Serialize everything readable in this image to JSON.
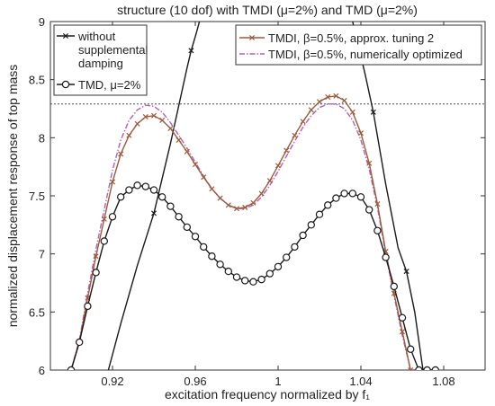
{
  "chart_data": {
    "type": "line",
    "title": "structure (10 dof) with TMDI (μ=2%) and TMD (μ=2%)",
    "xlabel": "excitation frequency normalized by f₁",
    "ylabel": "normalized displacement response of top mass",
    "xlim": [
      0.89,
      1.1
    ],
    "ylim": [
      6,
      9
    ],
    "xticks": [
      0.92,
      0.96,
      1,
      1.04,
      1.08
    ],
    "xtick_labels": [
      "0.92",
      "0.96",
      "1",
      "1.04",
      "1.08"
    ],
    "yticks": [
      6,
      6.5,
      7,
      7.5,
      8,
      8.5,
      9
    ],
    "ytick_labels": [
      "6",
      "6.5",
      "7",
      "7.5",
      "8",
      "8.5",
      "9"
    ],
    "grid": false,
    "reference_line_y": 8.29,
    "legend_left": {
      "placement": "top-left",
      "entries": [
        {
          "label_lines": [
            "without",
            "supplemental",
            "damping"
          ],
          "series": 0
        },
        {
          "label_lines": [
            "TMD, μ=2%"
          ],
          "series": 1
        }
      ]
    },
    "legend_right": {
      "placement": "top-right",
      "entries": [
        {
          "label_lines": [
            "TMDI, β=0.5%, approx. tuning 2"
          ],
          "series": 2
        },
        {
          "label_lines": [
            "TMDI, β=0.5%, numerically optimized"
          ],
          "series": 3
        }
      ]
    },
    "series": [
      {
        "name": "without supplemental damping",
        "color": "#1a1a1a",
        "marker": "x",
        "segments": [
          [
            [
              0.918,
              6.0
            ],
            [
              0.924,
              6.4
            ],
            [
              0.932,
              6.9
            ],
            [
              0.94,
              7.35
            ],
            [
              0.948,
              7.95
            ],
            [
              0.956,
              8.6
            ],
            [
              0.958,
              8.75
            ],
            [
              0.9605,
              8.9
            ],
            [
              0.962,
              9.0
            ]
          ],
          [
            [
              1.036,
              9.0
            ],
            [
              1.038,
              8.85
            ],
            [
              1.042,
              8.55
            ],
            [
              1.046,
              8.22
            ],
            [
              1.052,
              7.6
            ],
            [
              1.058,
              7.05
            ],
            [
              1.062,
              6.85
            ],
            [
              1.066,
              6.5
            ],
            [
              1.07,
              6.0
            ]
          ]
        ],
        "marker_points": [
          [
            0.94,
            7.35
          ],
          [
            0.958,
            8.75
          ],
          [
            1.046,
            8.22
          ],
          [
            1.062,
            6.85
          ]
        ]
      },
      {
        "name": "TMD, μ=2%",
        "color": "#1a1a1a",
        "marker": "circle",
        "x": [
          0.9,
          0.904,
          0.908,
          0.912,
          0.916,
          0.92,
          0.924,
          0.928,
          0.932,
          0.936,
          0.94,
          0.944,
          0.948,
          0.952,
          0.956,
          0.96,
          0.964,
          0.968,
          0.972,
          0.976,
          0.98,
          0.984,
          0.988,
          0.992,
          0.996,
          1.0,
          1.004,
          1.008,
          1.012,
          1.016,
          1.02,
          1.024,
          1.028,
          1.032,
          1.036,
          1.04,
          1.044,
          1.048,
          1.052,
          1.056,
          1.06,
          1.064,
          1.068,
          1.072,
          1.076
        ],
        "y": [
          6.0,
          6.24,
          6.55,
          6.84,
          7.11,
          7.32,
          7.49,
          7.55,
          7.59,
          7.58,
          7.55,
          7.49,
          7.41,
          7.32,
          7.23,
          7.15,
          7.06,
          6.98,
          6.91,
          6.85,
          6.8,
          6.77,
          6.76,
          6.78,
          6.83,
          6.89,
          6.97,
          7.06,
          7.16,
          7.25,
          7.34,
          7.42,
          7.48,
          7.52,
          7.52,
          7.49,
          7.38,
          7.2,
          6.97,
          6.72,
          6.45,
          6.18,
          6.0,
          6.0,
          6.0
        ]
      },
      {
        "name": "TMDI, β=0.5%, approx. tuning 2",
        "color": "#9c5a3c",
        "marker": "x",
        "x": [
          0.9,
          0.904,
          0.908,
          0.912,
          0.916,
          0.92,
          0.924,
          0.928,
          0.932,
          0.936,
          0.94,
          0.944,
          0.948,
          0.952,
          0.956,
          0.96,
          0.964,
          0.968,
          0.972,
          0.976,
          0.98,
          0.984,
          0.988,
          0.992,
          0.996,
          1.0,
          1.004,
          1.008,
          1.012,
          1.016,
          1.02,
          1.024,
          1.028,
          1.032,
          1.036,
          1.04,
          1.044,
          1.048,
          1.052,
          1.056,
          1.06,
          1.064,
          1.068,
          1.072,
          1.076
        ],
        "y": [
          6.0,
          6.24,
          6.62,
          6.98,
          7.3,
          7.62,
          7.86,
          8.02,
          8.12,
          8.18,
          8.19,
          8.15,
          8.08,
          7.98,
          7.88,
          7.77,
          7.66,
          7.56,
          7.48,
          7.42,
          7.39,
          7.4,
          7.44,
          7.52,
          7.63,
          7.76,
          7.89,
          8.02,
          8.14,
          8.24,
          8.31,
          8.35,
          8.36,
          8.32,
          8.22,
          8.04,
          7.78,
          7.43,
          7.02,
          6.66,
          6.33,
          6.0,
          6.0,
          6.0,
          6.0
        ]
      },
      {
        "name": "TMDI, β=0.5%, numerically optimized",
        "color": "#b85fb0",
        "marker": "none",
        "x": [
          0.9,
          0.904,
          0.908,
          0.912,
          0.916,
          0.92,
          0.924,
          0.928,
          0.932,
          0.936,
          0.94,
          0.944,
          0.948,
          0.952,
          0.956,
          0.96,
          0.964,
          0.968,
          0.972,
          0.976,
          0.98,
          0.984,
          0.988,
          0.992,
          0.996,
          1.0,
          1.004,
          1.008,
          1.012,
          1.016,
          1.02,
          1.024,
          1.028,
          1.032,
          1.036,
          1.04,
          1.044,
          1.048,
          1.052,
          1.056,
          1.06,
          1.064,
          1.068
        ],
        "y": [
          6.0,
          6.26,
          6.66,
          7.04,
          7.38,
          7.72,
          7.98,
          8.15,
          8.24,
          8.28,
          8.27,
          8.22,
          8.13,
          8.02,
          7.91,
          7.79,
          7.67,
          7.56,
          7.48,
          7.42,
          7.39,
          7.39,
          7.42,
          7.49,
          7.59,
          7.71,
          7.84,
          7.97,
          8.09,
          8.19,
          8.26,
          8.29,
          8.29,
          8.25,
          8.15,
          7.98,
          7.73,
          7.4,
          7.0,
          6.64,
          6.3,
          6.0,
          6.0
        ]
      }
    ]
  }
}
